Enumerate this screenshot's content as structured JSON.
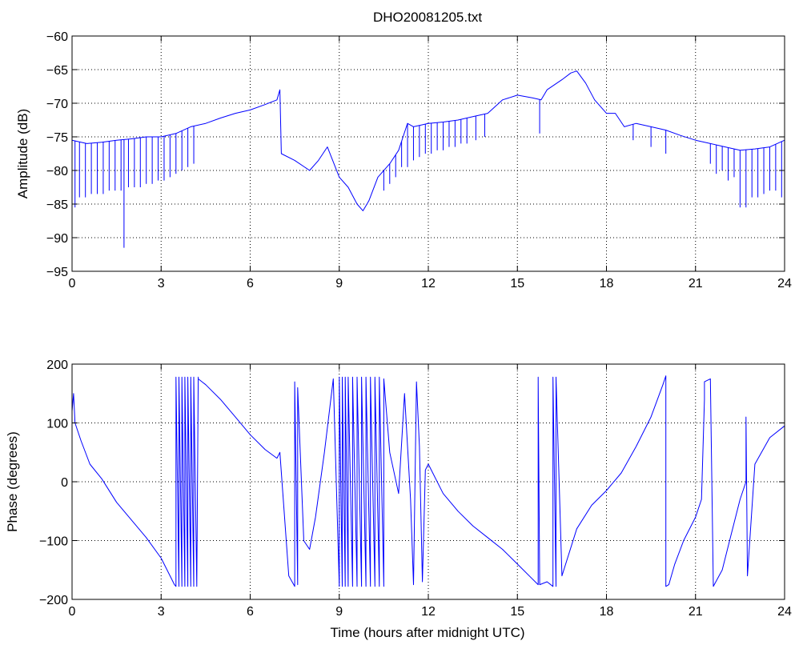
{
  "chart_data": [
    {
      "type": "line",
      "title": "DHO20081205.txt",
      "xlabel": "",
      "ylabel": "Amplitude (dB)",
      "xlim": [
        0,
        24
      ],
      "ylim": [
        -95,
        -60
      ],
      "xticks": [
        0,
        3,
        6,
        9,
        12,
        15,
        18,
        21,
        24
      ],
      "yticks": [
        -95,
        -90,
        -85,
        -80,
        -75,
        -70,
        -65,
        -60
      ],
      "xtick_labels": [
        "0",
        "3",
        "6",
        "9",
        "12",
        "15",
        "18",
        "21",
        "24"
      ],
      "ytick_labels": [
        "−95",
        "−90",
        "−85",
        "−80",
        "−75",
        "−70",
        "−65",
        "−60"
      ],
      "grid": true,
      "series": [
        {
          "color": "#0000ff",
          "x": [
            0,
            0.5,
            1,
            1.5,
            2,
            2.5,
            3,
            3.5,
            4,
            4.5,
            5,
            5.5,
            6,
            6.5,
            6.9,
            7.0,
            7.05,
            7.5,
            8.0,
            8.3,
            8.6,
            9.0,
            9.3,
            9.6,
            9.8,
            10.0,
            10.3,
            10.7,
            11.0,
            11.3,
            11.5,
            12.0,
            12.5,
            13.0,
            13.5,
            14.0,
            14.5,
            15.0,
            15.5,
            15.8,
            16.0,
            16.5,
            16.8,
            17.0,
            17.3,
            17.6,
            18.0,
            18.3,
            18.6,
            19.0,
            19.5,
            20.0,
            20.5,
            21.0,
            21.5,
            22.0,
            22.5,
            23.0,
            23.5,
            24.0
          ],
          "y": [
            -75.5,
            -76,
            -75.8,
            -75.5,
            -75.3,
            -75,
            -75,
            -74.5,
            -73.5,
            -73,
            -72.2,
            -71.5,
            -71,
            -70.2,
            -69.5,
            -68,
            -77.5,
            -78.5,
            -80,
            -78.5,
            -76.5,
            -81,
            -82.5,
            -85,
            -86,
            -84.5,
            -81,
            -79,
            -77,
            -73,
            -73.5,
            -73,
            -72.8,
            -72.5,
            -72,
            -71.5,
            -69.5,
            -68.8,
            -69.2,
            -69.5,
            -68,
            -66.5,
            -65.5,
            -65.2,
            -67,
            -69.5,
            -71.5,
            -71.5,
            -73.5,
            -73,
            -73.5,
            -74,
            -74.8,
            -75.5,
            -76,
            -76.5,
            -77,
            -76.8,
            -76.5,
            -75.5
          ],
          "dips": [
            {
              "x": 0.1,
              "y": -85.5
            },
            {
              "x": 0.25,
              "y": -84
            },
            {
              "x": 0.45,
              "y": -84
            },
            {
              "x": 0.65,
              "y": -83.5
            },
            {
              "x": 0.85,
              "y": -83.5
            },
            {
              "x": 1.05,
              "y": -83.5
            },
            {
              "x": 1.25,
              "y": -83
            },
            {
              "x": 1.45,
              "y": -83
            },
            {
              "x": 1.65,
              "y": -83
            },
            {
              "x": 1.75,
              "y": -91.5
            },
            {
              "x": 1.9,
              "y": -82.5
            },
            {
              "x": 2.1,
              "y": -82.5
            },
            {
              "x": 2.3,
              "y": -82.5
            },
            {
              "x": 2.5,
              "y": -82
            },
            {
              "x": 2.7,
              "y": -82
            },
            {
              "x": 2.9,
              "y": -81.5
            },
            {
              "x": 3.1,
              "y": -81.5
            },
            {
              "x": 3.3,
              "y": -81
            },
            {
              "x": 3.5,
              "y": -80.5
            },
            {
              "x": 3.7,
              "y": -80
            },
            {
              "x": 3.9,
              "y": -79.5
            },
            {
              "x": 4.1,
              "y": -79
            },
            {
              "x": 10.5,
              "y": -83
            },
            {
              "x": 10.7,
              "y": -82
            },
            {
              "x": 10.9,
              "y": -81
            },
            {
              "x": 11.1,
              "y": -79.5
            },
            {
              "x": 11.3,
              "y": -79.5
            },
            {
              "x": 11.5,
              "y": -78.5
            },
            {
              "x": 11.7,
              "y": -78
            },
            {
              "x": 11.9,
              "y": -77.5
            },
            {
              "x": 12.1,
              "y": -77.5
            },
            {
              "x": 12.3,
              "y": -77
            },
            {
              "x": 12.5,
              "y": -77
            },
            {
              "x": 12.7,
              "y": -76.5
            },
            {
              "x": 12.9,
              "y": -76.5
            },
            {
              "x": 13.1,
              "y": -76
            },
            {
              "x": 13.3,
              "y": -76
            },
            {
              "x": 13.6,
              "y": -75.5
            },
            {
              "x": 13.9,
              "y": -75
            },
            {
              "x": 15.75,
              "y": -74.5
            },
            {
              "x": 18.9,
              "y": -75.5
            },
            {
              "x": 19.5,
              "y": -76.5
            },
            {
              "x": 20.0,
              "y": -77.5
            },
            {
              "x": 21.5,
              "y": -79
            },
            {
              "x": 21.7,
              "y": -80.5
            },
            {
              "x": 21.9,
              "y": -80
            },
            {
              "x": 22.1,
              "y": -81.5
            },
            {
              "x": 22.3,
              "y": -81
            },
            {
              "x": 22.5,
              "y": -85.5
            },
            {
              "x": 22.7,
              "y": -85.5
            },
            {
              "x": 22.9,
              "y": -84
            },
            {
              "x": 23.1,
              "y": -84
            },
            {
              "x": 23.3,
              "y": -83.5
            },
            {
              "x": 23.5,
              "y": -83
            },
            {
              "x": 23.7,
              "y": -83
            },
            {
              "x": 23.9,
              "y": -84
            }
          ]
        }
      ]
    },
    {
      "type": "line",
      "title": "",
      "xlabel": "Time (hours after midnight UTC)",
      "ylabel": "Phase (degrees)",
      "xlim": [
        0,
        24
      ],
      "ylim": [
        -200,
        200
      ],
      "xticks": [
        0,
        3,
        6,
        9,
        12,
        15,
        18,
        21,
        24
      ],
      "yticks": [
        -200,
        -100,
        0,
        100,
        200
      ],
      "xtick_labels": [
        "0",
        "3",
        "6",
        "9",
        "12",
        "15",
        "18",
        "21",
        "24"
      ],
      "ytick_labels": [
        "−200",
        "−100",
        "0",
        "100",
        "200"
      ],
      "grid": true,
      "series": [
        {
          "color": "#0000ff",
          "x": [
            0,
            0.05,
            0.1,
            0.3,
            0.6,
            1.0,
            1.5,
            2.0,
            2.5,
            3.0,
            3.3,
            3.45,
            3.5,
            3.5,
            3.6,
            3.6,
            3.7,
            3.7,
            3.8,
            3.8,
            3.9,
            3.9,
            4.0,
            4.0,
            4.1,
            4.1,
            4.2,
            4.25,
            4.25,
            4.5,
            5.0,
            5.5,
            6.0,
            6.5,
            6.9,
            7.0,
            7.1,
            7.3,
            7.5,
            7.5,
            7.6,
            7.6,
            7.8,
            7.8,
            8.0,
            8.2,
            8.5,
            8.8,
            9.0,
            9.0,
            9.1,
            9.1,
            9.2,
            9.2,
            9.3,
            9.3,
            9.45,
            9.45,
            9.6,
            9.6,
            9.75,
            9.75,
            9.9,
            9.9,
            10.05,
            10.05,
            10.2,
            10.2,
            10.35,
            10.35,
            10.5,
            10.5,
            10.7,
            11.0,
            11.2,
            11.4,
            11.5,
            11.6,
            11.7,
            11.8,
            11.9,
            12.0,
            12.5,
            13.0,
            13.5,
            14.0,
            14.5,
            15.0,
            15.5,
            15.7,
            15.7,
            15.75,
            16.0,
            16.2,
            16.2,
            16.3,
            16.3,
            16.5,
            17.0,
            17.5,
            18.0,
            18.5,
            19.0,
            19.5,
            19.9,
            20.0,
            20.0,
            20.1,
            20.3,
            20.6,
            21.0,
            21.2,
            21.3,
            21.3,
            21.5,
            21.6,
            21.6,
            21.9,
            22.2,
            22.5,
            22.7,
            22.7,
            22.75,
            23.0,
            23.5,
            24.0
          ],
          "y": [
            120,
            150,
            100,
            70,
            30,
            5,
            -35,
            -65,
            -95,
            -130,
            -160,
            -175,
            -178,
            178,
            -178,
            178,
            -178,
            178,
            -178,
            178,
            -178,
            178,
            -178,
            178,
            -178,
            178,
            -178,
            178,
            175,
            165,
            140,
            110,
            80,
            55,
            40,
            50,
            -20,
            -160,
            -178,
            170,
            -175,
            160,
            -95,
            -100,
            -115,
            -60,
            50,
            175,
            -178,
            178,
            -178,
            178,
            -178,
            178,
            -178,
            178,
            -178,
            178,
            -178,
            178,
            -178,
            178,
            -178,
            178,
            -178,
            178,
            -178,
            178,
            -178,
            178,
            -178,
            175,
            50,
            -20,
            150,
            -30,
            -175,
            170,
            60,
            -170,
            20,
            30,
            -20,
            -50,
            -75,
            -95,
            -115,
            -140,
            -165,
            -175,
            178,
            -175,
            -170,
            -178,
            178,
            -178,
            178,
            -160,
            -80,
            -40,
            -15,
            15,
            60,
            110,
            165,
            180,
            -178,
            -175,
            -140,
            -100,
            -60,
            -30,
            140,
            170,
            175,
            -178,
            -178,
            -150,
            -90,
            -30,
            0,
            110,
            -160,
            30,
            75,
            95
          ]
        }
      ]
    }
  ]
}
